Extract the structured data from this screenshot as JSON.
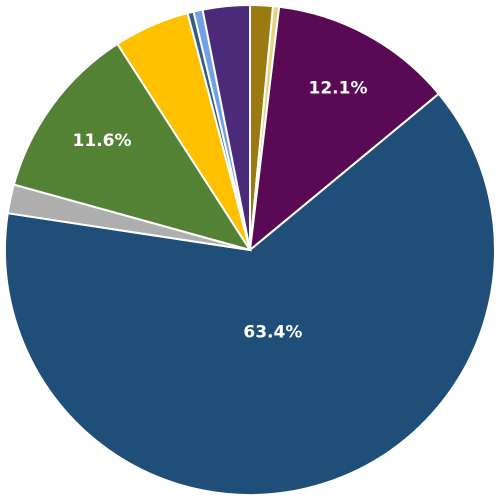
{
  "chart_data": {
    "type": "pie",
    "values": [
      1.5,
      0.4,
      12.1,
      63.4,
      1.9,
      11.6,
      5.0,
      0.4,
      0.6,
      3.1
    ],
    "value_labels": [
      null,
      null,
      "12.1%",
      "63.4%",
      null,
      "11.6%",
      null,
      null,
      null,
      null
    ],
    "colors": [
      "#9c7a12",
      "#e8d27a",
      "#5a0a55",
      "#1f4e79",
      "#aeaeae",
      "#548235",
      "#ffc000",
      "#2e5f8a",
      "#6fa0e8",
      "#4b2a7a"
    ],
    "start_angle": 0,
    "direction": "clockwise"
  }
}
